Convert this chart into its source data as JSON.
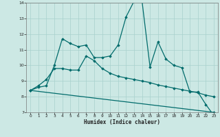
{
  "xlabel": "Humidex (Indice chaleur)",
  "bg_color": "#cce8e4",
  "line_color": "#006b6b",
  "xlim": [
    -0.5,
    23.5
  ],
  "ylim": [
    7,
    14
  ],
  "xticks": [
    0,
    1,
    2,
    3,
    4,
    5,
    6,
    7,
    8,
    9,
    10,
    11,
    12,
    13,
    14,
    15,
    16,
    17,
    18,
    19,
    20,
    21,
    22,
    23
  ],
  "yticks": [
    7,
    8,
    9,
    10,
    11,
    12,
    13,
    14
  ],
  "line1_x": [
    0,
    1,
    2,
    3,
    4,
    5,
    6,
    7,
    8,
    9,
    10,
    11,
    12,
    13,
    14,
    15,
    16,
    17,
    18,
    19,
    20,
    21,
    22,
    23
  ],
  "line1_y": [
    8.4,
    8.6,
    8.7,
    10.0,
    11.7,
    11.4,
    11.2,
    11.3,
    10.5,
    10.5,
    10.6,
    11.3,
    13.1,
    14.1,
    14.1,
    9.9,
    11.5,
    10.4,
    10.0,
    9.85,
    8.3,
    8.3,
    7.5,
    6.8
  ],
  "line2_x": [
    0,
    1,
    2,
    3,
    4,
    5,
    6,
    7,
    8,
    9,
    10,
    11,
    12,
    13,
    14,
    15,
    16,
    17,
    18,
    19,
    20,
    21,
    22,
    23
  ],
  "line2_y": [
    8.4,
    8.7,
    9.1,
    9.8,
    9.8,
    9.7,
    9.7,
    10.6,
    10.3,
    9.8,
    9.5,
    9.3,
    9.2,
    9.1,
    9.0,
    8.9,
    8.75,
    8.65,
    8.55,
    8.45,
    8.35,
    8.25,
    8.1,
    8.0
  ],
  "line3_x": [
    0,
    23
  ],
  "line3_y": [
    8.4,
    7.0
  ]
}
